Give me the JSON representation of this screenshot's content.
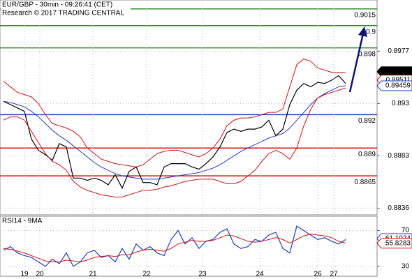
{
  "chart_data": [
    {
      "type": "line",
      "title": "EUR/GBP - 30min - 09:26:41 (CET)",
      "subtitle": "Research © 2017 TRADING CENTRAL",
      "xlim": [
        -0.5,
        53.5
      ],
      "ylim": [
        0.883,
        0.9023
      ],
      "yticks": [
        0.8977,
        0.893,
        0.8883,
        0.8836
      ],
      "grid": true,
      "series": [
        {
          "color": "#000000",
          "values": [
            0.8932,
            0.8929,
            0.8926,
            0.8923,
            0.8898,
            0.8888,
            0.8884,
            0.8879,
            0.8894,
            0.8891,
            0.8863,
            0.8863,
            0.8861,
            0.8863,
            0.8861,
            0.8857,
            0.8866,
            0.8854,
            0.8869,
            0.8873,
            0.8859,
            0.8859,
            0.8857,
            0.8873,
            0.8876,
            0.8876,
            0.8876,
            0.8873,
            0.8871,
            0.8876,
            0.8882,
            0.8891,
            0.8904,
            0.8907,
            0.8905,
            0.8907,
            0.8907,
            0.8909,
            0.8915,
            0.8901,
            0.8907,
            0.8929,
            0.8942,
            0.8948,
            0.8945,
            0.8949,
            0.8948,
            0.8951,
            0.8955,
            0.8948
          ]
        },
        {
          "color": "#1f3fbf",
          "values": [
            0.8932,
            0.8931,
            0.8929,
            0.8927,
            0.8923,
            0.8918,
            0.8912,
            0.8906,
            0.8901,
            0.8897,
            0.8892,
            0.8887,
            0.8882,
            0.8877,
            0.8873,
            0.887,
            0.8867,
            0.8865,
            0.8864,
            0.8863,
            0.8862,
            0.8862,
            0.8862,
            0.8863,
            0.8864,
            0.8865,
            0.8866,
            0.8867,
            0.8868,
            0.887,
            0.8872,
            0.8875,
            0.8879,
            0.8883,
            0.8887,
            0.889,
            0.8893,
            0.8896,
            0.8899,
            0.8901,
            0.8903,
            0.8908,
            0.8915,
            0.8922,
            0.8929,
            0.8935,
            0.8939,
            0.8942,
            0.8945,
            0.8946
          ]
        },
        {
          "color": "#cc1111",
          "values": [
            0.895,
            0.8945,
            0.894,
            0.8938,
            0.8936,
            0.893,
            0.892,
            0.8912,
            0.891,
            0.8908,
            0.8905,
            0.89,
            0.889,
            0.8885,
            0.888,
            0.8878,
            0.8876,
            0.8875,
            0.8874,
            0.8873,
            0.8875,
            0.888,
            0.8885,
            0.8887,
            0.8888,
            0.8888,
            0.8886,
            0.8884,
            0.8882,
            0.8885,
            0.889,
            0.8898,
            0.891,
            0.8915,
            0.8917,
            0.8917,
            0.8918,
            0.892,
            0.8922,
            0.8922,
            0.8925,
            0.8945,
            0.8965,
            0.897,
            0.8968,
            0.8962,
            0.896,
            0.8958,
            0.8958,
            0.8958
          ]
        },
        {
          "color": "#cc1111",
          "values": [
            0.8915,
            0.8918,
            0.8918,
            0.8915,
            0.8905,
            0.8895,
            0.8885,
            0.8878,
            0.8875,
            0.887,
            0.886,
            0.8855,
            0.8852,
            0.885,
            0.8848,
            0.8847,
            0.8846,
            0.8846,
            0.8848,
            0.885,
            0.8852,
            0.8852,
            0.8853,
            0.8855,
            0.8856,
            0.8858,
            0.886,
            0.8861,
            0.8862,
            0.8862,
            0.8862,
            0.886,
            0.8858,
            0.8858,
            0.886,
            0.8865,
            0.887,
            0.8878,
            0.8885,
            0.8888,
            0.8885,
            0.888,
            0.889,
            0.891,
            0.8925,
            0.8935,
            0.8938,
            0.894,
            0.8942,
            0.8944
          ]
        }
      ],
      "levels": [
        {
          "value": 0.9015,
          "color": "#2e8b2e"
        },
        {
          "value": 0.9,
          "color": "#2e8b2e"
        },
        {
          "value": 0.898,
          "color": "#2e8b2e"
        },
        {
          "value": 0.892,
          "color": "#1f3fbf"
        },
        {
          "value": 0.889,
          "color": "#dd1111"
        },
        {
          "value": 0.8865,
          "color": "#dd1111"
        }
      ],
      "price_tags": [
        {
          "value": 0.89586,
          "color": "#000000"
        },
        {
          "value": 0.89511,
          "color": "#dd1111"
        },
        {
          "value": 0.89459,
          "color": "#1f3fbf"
        }
      ]
    },
    {
      "type": "line",
      "title": "RSI14 - 9MA",
      "xlim": [
        -0.5,
        53.5
      ],
      "xticks": [
        {
          "value": 3,
          "label": "19"
        },
        {
          "value": 5.2,
          "label": "20"
        },
        {
          "value": 12.8,
          "label": "21"
        },
        {
          "value": 20.5,
          "label": "22"
        },
        {
          "value": 28.5,
          "label": "23"
        },
        {
          "value": 36.7,
          "label": "24"
        },
        {
          "value": 45,
          "label": "26"
        },
        {
          "value": 47.3,
          "label": "27"
        }
      ],
      "ylim": [
        19,
        86
      ],
      "yticks": [
        70,
        30
      ],
      "grid": true,
      "series": [
        {
          "color": "#1f3fbf",
          "values": [
            48,
            52,
            45,
            42,
            40,
            35,
            30,
            38,
            33,
            45,
            30,
            35,
            45,
            48,
            40,
            42,
            35,
            50,
            38,
            55,
            48,
            52,
            45,
            42,
            60,
            70,
            55,
            62,
            50,
            58,
            60,
            68,
            72,
            55,
            50,
            52,
            60,
            58,
            65,
            68,
            50,
            45,
            75,
            70,
            65,
            60,
            62,
            58,
            55,
            60
          ]
        },
        {
          "color": "#cc1111",
          "values": [
            50,
            49,
            47,
            45,
            42,
            39,
            36,
            35,
            35,
            37,
            36,
            35,
            37,
            40,
            41,
            42,
            41,
            43,
            43,
            46,
            48,
            49,
            48,
            47,
            50,
            55,
            57,
            59,
            58,
            58,
            59,
            62,
            65,
            64,
            61,
            58,
            57,
            58,
            60,
            62,
            60,
            56,
            60,
            64,
            66,
            65,
            64,
            62,
            58,
            56
          ]
        }
      ],
      "price_tags": [
        {
          "value": 61.1024,
          "color": "#1f3fbf"
        },
        {
          "value": 55.8283,
          "color": "#dd1111"
        }
      ]
    }
  ]
}
